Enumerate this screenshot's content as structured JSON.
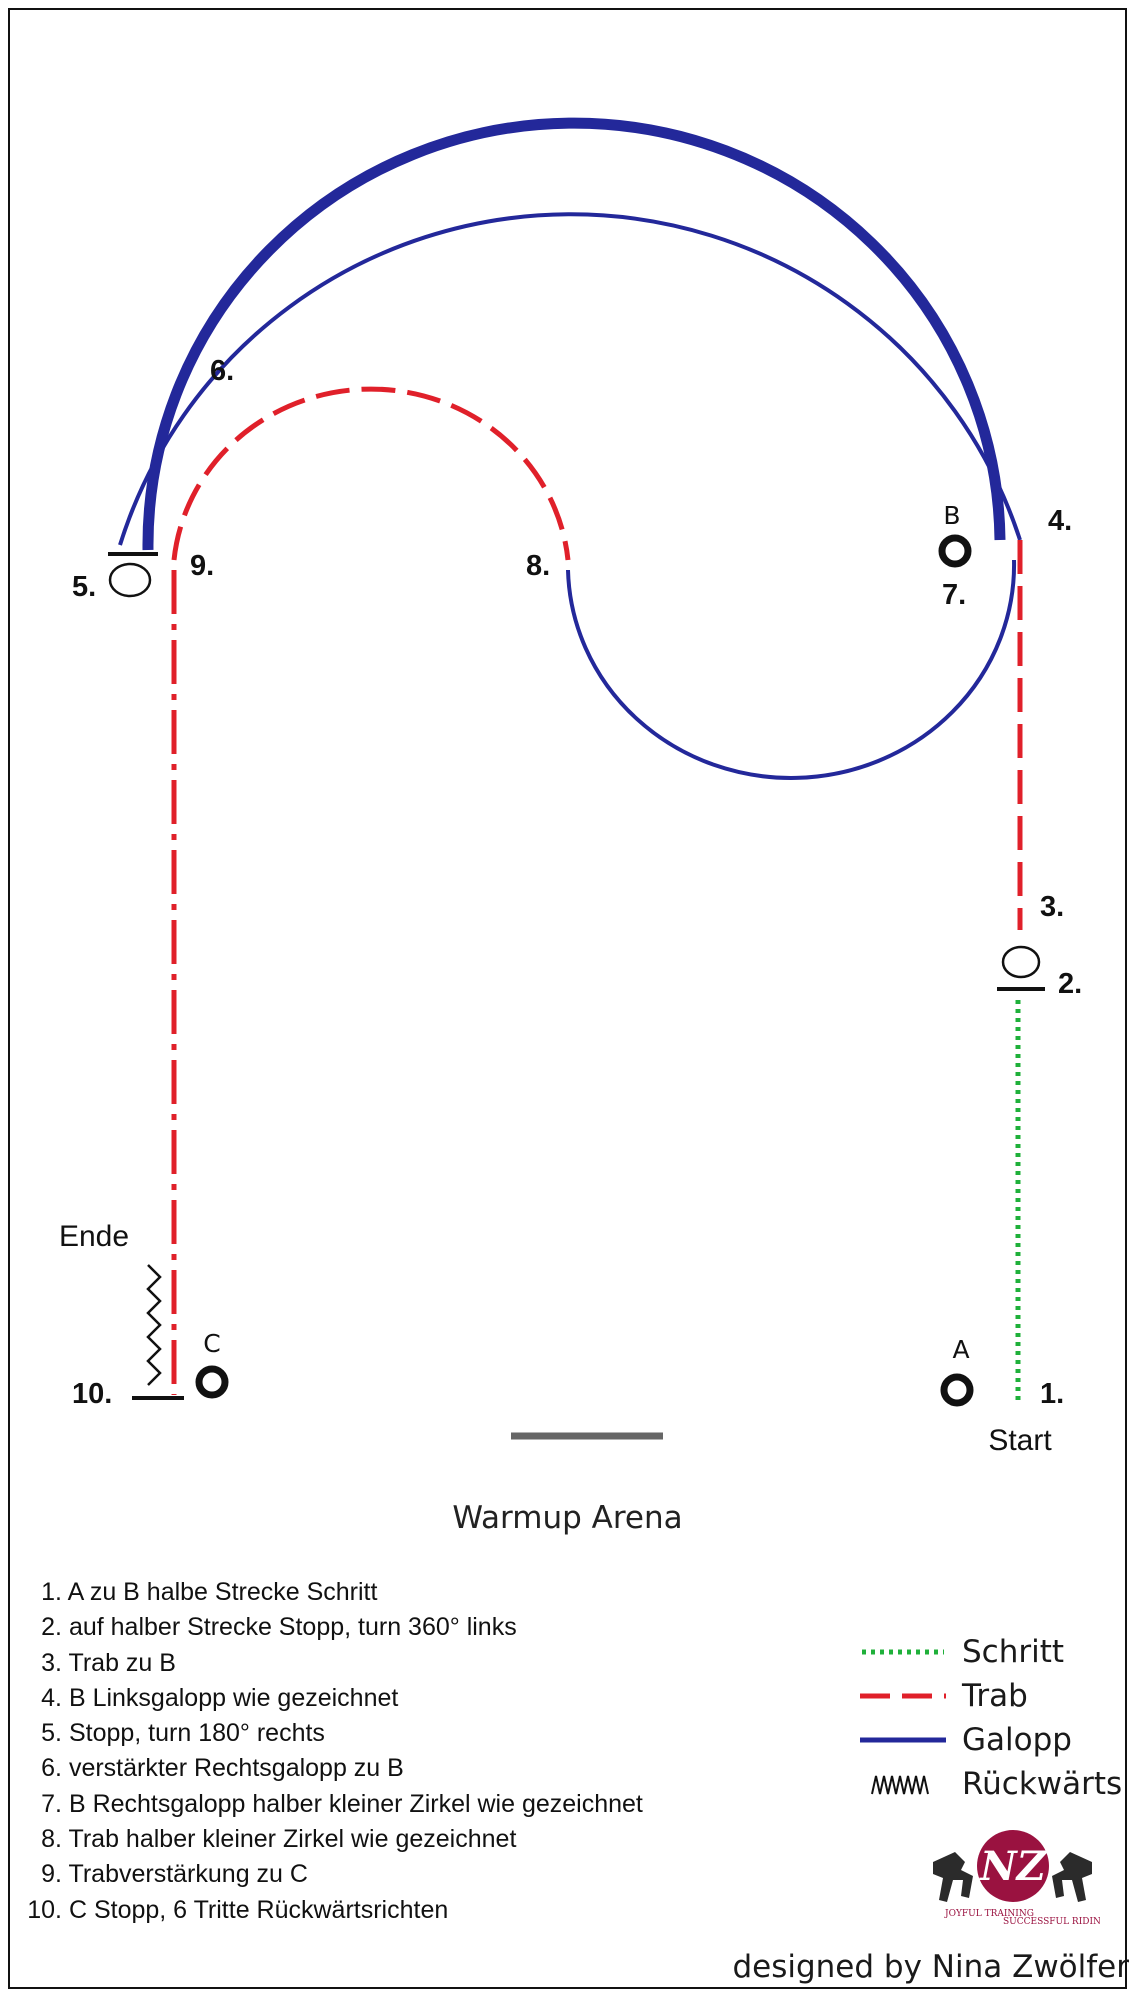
{
  "arena": {
    "title": "Warmup Arena"
  },
  "markers": {
    "a": "A",
    "b": "B",
    "c": "C"
  },
  "labels": {
    "start": "Start",
    "ende": "Ende",
    "s1": "1.",
    "s2": "2.",
    "s3": "3.",
    "s4": "4.",
    "s5": "5.",
    "s6": "6.",
    "s7": "7.",
    "s8": "8.",
    "s9": "9.",
    "s10": "10."
  },
  "steps": [
    {
      "num": "1.",
      "text": "A zu B halbe Strecke Schritt"
    },
    {
      "num": "2.",
      "text": "auf halber Strecke Stopp, turn 360° links"
    },
    {
      "num": "3.",
      "text": "Trab zu B"
    },
    {
      "num": "4.",
      "text": "B Linksgalopp wie gezeichnet"
    },
    {
      "num": "5.",
      "text": "Stopp, turn 180° rechts"
    },
    {
      "num": "6.",
      "text": "verstärkter Rechtsgalopp zu B"
    },
    {
      "num": "7.",
      "text": "B Rechtsgalopp halber kleiner Zirkel wie gezeichnet"
    },
    {
      "num": "8.",
      "text": "Trab halber kleiner Zirkel wie gezeichnet"
    },
    {
      "num": "9.",
      "text": "Trabverstärkung zu C"
    },
    {
      "num": "10.",
      "text": "C Stopp, 6 Tritte Rückwärtsrichten"
    }
  ],
  "legend": [
    {
      "label": "Schritt",
      "style": "dotted",
      "color": "#1fb03a"
    },
    {
      "label": "Trab",
      "style": "dashed",
      "color": "#e0202a"
    },
    {
      "label": "Galopp",
      "style": "solid",
      "color": "#23289a"
    },
    {
      "label": "Rückwärts",
      "style": "zigzag",
      "color": "#111111"
    }
  ],
  "logo": {
    "text": "NZ",
    "tagline1": "JOYFUL TRAINING",
    "tagline2": "SUCCESSFUL RIDING"
  },
  "credit": "designed by Nina Zwölfer",
  "colors": {
    "walk": "#1fb03a",
    "trot": "#e0202a",
    "canter": "#23289a",
    "ink": "#111111",
    "board": "#666666"
  }
}
